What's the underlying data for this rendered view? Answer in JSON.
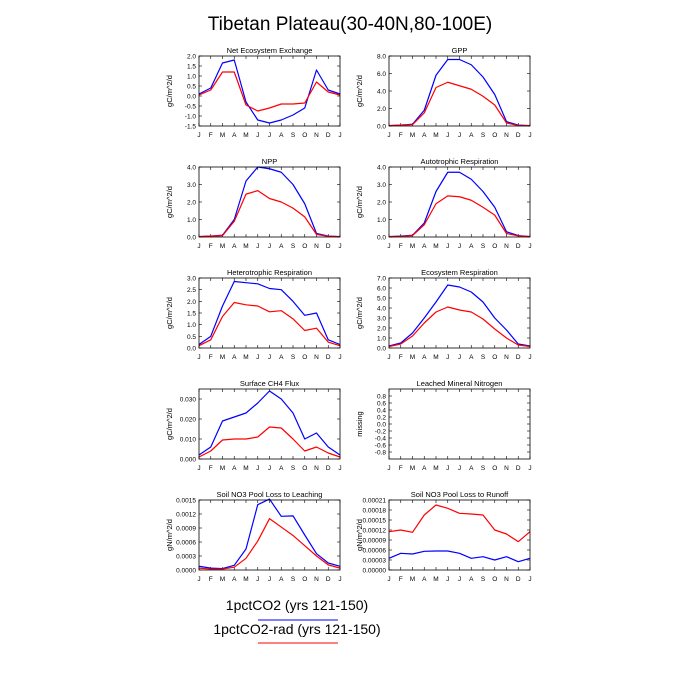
{
  "title": "Tibetan Plateau(30-40N,80-100E)",
  "month_labels": [
    "J",
    "F",
    "M",
    "A",
    "M",
    "J",
    "J",
    "A",
    "S",
    "O",
    "N",
    "D",
    "J"
  ],
  "legend": {
    "entries": [
      {
        "label": "1pctCO2 (yrs 121-150)",
        "color": "#0000ff"
      },
      {
        "label": "1pctCO2-rad (yrs 121-150)",
        "color": "#ff0000"
      }
    ]
  },
  "chart_data": [
    {
      "type": "line",
      "title": "Net Ecosystem Exchange",
      "ylabel": "gC/m^2/d",
      "ylim": [
        -1.5,
        2.0
      ],
      "yticks": [
        "-1.5",
        "-1.0",
        "-0.5",
        "0.0",
        "0.5",
        "1.0",
        "1.5",
        "2.0"
      ],
      "series": [
        {
          "color": "#0000ff",
          "values": [
            0.1,
            0.4,
            1.65,
            1.8,
            -0.3,
            -1.2,
            -1.35,
            -1.2,
            -0.95,
            -0.6,
            1.3,
            0.3,
            0.1
          ]
        },
        {
          "color": "#ff0000",
          "values": [
            0.05,
            0.3,
            1.2,
            1.2,
            -0.45,
            -0.75,
            -0.6,
            -0.4,
            -0.4,
            -0.35,
            0.7,
            0.2,
            0.05
          ]
        }
      ]
    },
    {
      "type": "line",
      "title": "GPP",
      "ylabel": "gC/m^2/d",
      "ylim": [
        0,
        8.0
      ],
      "yticks": [
        "0.0",
        "2.0",
        "4.0",
        "6.0",
        "8.0"
      ],
      "series": [
        {
          "color": "#0000ff",
          "values": [
            0.05,
            0.1,
            0.2,
            1.8,
            5.8,
            7.6,
            7.6,
            7.0,
            5.6,
            3.6,
            0.5,
            0.1,
            0.05
          ]
        },
        {
          "color": "#ff0000",
          "values": [
            0.05,
            0.1,
            0.15,
            1.5,
            4.4,
            5.0,
            4.6,
            4.2,
            3.4,
            2.4,
            0.35,
            0.05,
            0.05
          ]
        }
      ]
    },
    {
      "type": "line",
      "title": "NPP",
      "ylabel": "gC/m^2/d",
      "ylim": [
        0,
        4.0
      ],
      "yticks": [
        "0.0",
        "1.0",
        "2.0",
        "3.0",
        "4.0"
      ],
      "series": [
        {
          "color": "#0000ff",
          "values": [
            0.02,
            0.05,
            0.1,
            1.0,
            3.2,
            4.0,
            3.9,
            3.7,
            3.0,
            1.9,
            0.2,
            0.05,
            0.02
          ]
        },
        {
          "color": "#ff0000",
          "values": [
            0.02,
            0.05,
            0.08,
            0.9,
            2.45,
            2.65,
            2.2,
            2.0,
            1.65,
            1.15,
            0.15,
            0.04,
            0.02
          ]
        }
      ]
    },
    {
      "type": "line",
      "title": "Autotrophic Respiration",
      "ylabel": "gC/m^2/d",
      "ylim": [
        0,
        4.0
      ],
      "yticks": [
        "0.0",
        "1.0",
        "2.0",
        "3.0",
        "4.0"
      ],
      "series": [
        {
          "color": "#0000ff",
          "values": [
            0.02,
            0.05,
            0.1,
            0.8,
            2.6,
            3.7,
            3.7,
            3.3,
            2.6,
            1.7,
            0.3,
            0.08,
            0.02
          ]
        },
        {
          "color": "#ff0000",
          "values": [
            0.02,
            0.04,
            0.08,
            0.7,
            1.9,
            2.35,
            2.3,
            2.1,
            1.7,
            1.25,
            0.2,
            0.06,
            0.02
          ]
        }
      ]
    },
    {
      "type": "line",
      "title": "Heterotrophic Respiration",
      "ylabel": "gC/m^2/d",
      "ylim": [
        0,
        3.0
      ],
      "yticks": [
        "0.0",
        "0.5",
        "1.0",
        "1.5",
        "2.0",
        "2.5",
        "3.0"
      ],
      "series": [
        {
          "color": "#0000ff",
          "values": [
            0.15,
            0.5,
            1.8,
            2.85,
            2.8,
            2.75,
            2.55,
            2.5,
            2.0,
            1.4,
            1.5,
            0.35,
            0.15
          ]
        },
        {
          "color": "#ff0000",
          "values": [
            0.1,
            0.35,
            1.35,
            1.95,
            1.85,
            1.8,
            1.55,
            1.6,
            1.25,
            0.75,
            0.85,
            0.25,
            0.1
          ]
        }
      ]
    },
    {
      "type": "line",
      "title": "Ecosystem Respiration",
      "ylabel": "gC/m^2/d",
      "ylim": [
        0,
        7.0
      ],
      "yticks": [
        "0.0",
        "1.0",
        "2.0",
        "3.0",
        "4.0",
        "5.0",
        "6.0",
        "7.0"
      ],
      "series": [
        {
          "color": "#0000ff",
          "values": [
            0.2,
            0.5,
            1.5,
            3.0,
            4.6,
            6.3,
            6.1,
            5.6,
            4.6,
            3.0,
            1.8,
            0.4,
            0.2
          ]
        },
        {
          "color": "#ff0000",
          "values": [
            0.15,
            0.4,
            1.2,
            2.5,
            3.6,
            4.1,
            3.8,
            3.6,
            2.9,
            1.9,
            1.0,
            0.3,
            0.15
          ]
        }
      ]
    },
    {
      "type": "line",
      "title": "Surface CH4 Flux",
      "ylabel": "gC/m^2/d",
      "ylim": [
        0,
        0.035
      ],
      "yticks": [
        "0.000",
        "0.010",
        "0.020",
        "0.030"
      ],
      "series": [
        {
          "color": "#0000ff",
          "values": [
            0.002,
            0.006,
            0.019,
            0.021,
            0.023,
            0.028,
            0.034,
            0.03,
            0.023,
            0.01,
            0.013,
            0.006,
            0.002
          ]
        },
        {
          "color": "#ff0000",
          "values": [
            0.001,
            0.004,
            0.0095,
            0.01,
            0.01,
            0.011,
            0.016,
            0.0155,
            0.01,
            0.004,
            0.006,
            0.003,
            0.001
          ]
        }
      ]
    },
    {
      "type": "line",
      "title": "Leached Mineral Nitrogen",
      "ylabel": "missing",
      "ylim": [
        -1.0,
        1.0
      ],
      "yticks": [
        "-0.8",
        "-0.6",
        "-0.4",
        "-0.2",
        "0.0",
        "0.2",
        "0.4",
        "0.6",
        "0.8"
      ],
      "series": []
    },
    {
      "type": "line",
      "title": "Soil NO3 Pool Loss to Leaching",
      "ylabel": "gN/m^2/d",
      "ylim": [
        0,
        0.0015
      ],
      "yticks": [
        "0.0000",
        "0.0003",
        "0.0006",
        "0.0009",
        "0.0012",
        "0.0015"
      ],
      "series": [
        {
          "color": "#0000ff",
          "values": [
            8e-05,
            4e-05,
            3e-05,
            0.0001,
            0.00045,
            0.0014,
            0.00152,
            0.00115,
            0.00116,
            0.00075,
            0.00035,
            0.00015,
            8e-05
          ]
        },
        {
          "color": "#ff0000",
          "values": [
            4e-05,
            2e-05,
            2e-05,
            6e-05,
            0.00025,
            0.00062,
            0.0011,
            0.00092,
            0.00074,
            0.00052,
            0.0003,
            0.00011,
            4e-05
          ]
        }
      ]
    },
    {
      "type": "line",
      "title": "Soil NO3 Pool Loss to Runoff",
      "ylabel": "gN/m^2/d",
      "ylim": [
        0,
        0.00021
      ],
      "yticks": [
        "0.00000",
        "0.00003",
        "0.00006",
        "0.00009",
        "0.00012",
        "0.00015",
        "0.00018",
        "0.00021"
      ],
      "series": [
        {
          "color": "#0000ff",
          "values": [
            3.5e-05,
            5e-05,
            4.8e-05,
            5.6e-05,
            5.7e-05,
            5.7e-05,
            5e-05,
            3.5e-05,
            4e-05,
            3e-05,
            4e-05,
            2.5e-05,
            3.5e-05
          ]
        },
        {
          "color": "#ff0000",
          "values": [
            0.000115,
            0.00012,
            0.000113,
            0.000165,
            0.000195,
            0.000185,
            0.00017,
            0.000168,
            0.000165,
            0.00012,
            0.000108,
            8.5e-05,
            0.000115
          ]
        }
      ]
    }
  ]
}
